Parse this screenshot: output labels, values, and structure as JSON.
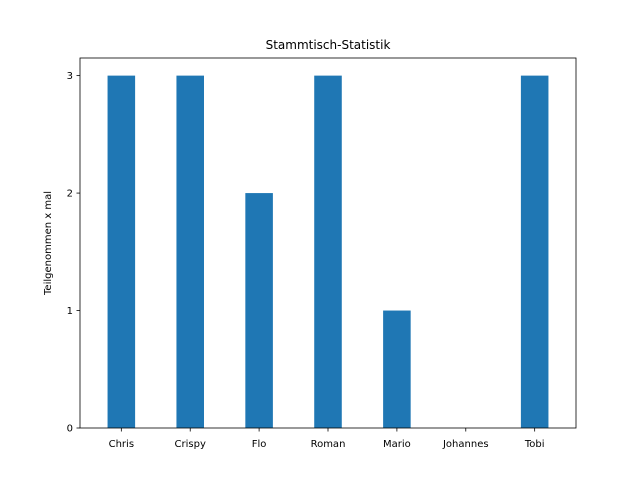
{
  "chart_data": {
    "type": "bar",
    "title": "Stammtisch-Statistik",
    "xlabel": "",
    "ylabel": "Teilgenommen x mal",
    "categories": [
      "Chris",
      "Crispy",
      "Flo",
      "Roman",
      "Mario",
      "Johannes",
      "Tobi"
    ],
    "values": [
      3,
      3,
      2,
      3,
      1,
      0,
      3
    ],
    "yticks": [
      "0",
      "1",
      "2",
      "3"
    ],
    "ylim": [
      0,
      3.15
    ],
    "grid": false,
    "legend": "none",
    "bar_color": "#1f77b4"
  }
}
